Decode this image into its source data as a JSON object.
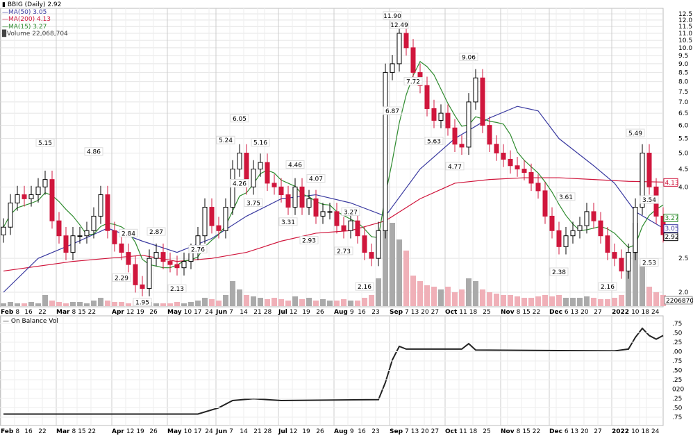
{
  "legend": {
    "title": "BBIG (Daily) 2.92",
    "ma50": "MA(50) 3.05",
    "ma200": "MA(200) 4.13",
    "ma15": "MA(15) 3.27",
    "volume": "Volume 22,068,704"
  },
  "obv_legend": "On Balance Vol",
  "colors": {
    "up": "#000000",
    "down": "#d0163c",
    "ma50": "#3a3aa0",
    "ma200": "#d0163c",
    "ma15": "#2e8b2e",
    "volume_up": "#aaaaaa",
    "volume_down": "#f0b0b8",
    "obv": "#222222"
  },
  "chart_data": {
    "type": "candlestick",
    "scale": "log",
    "ylim": [
      2.0,
      12.5
    ],
    "price_ticks": [
      "12.5",
      "12.0",
      "11.5",
      "11.0",
      "10.5",
      "10.0",
      "9.5",
      "9.0",
      "8.5",
      "8.0",
      "7.5",
      "7.0",
      "6.5",
      "6.0",
      "5.5",
      "5.0",
      "4.5",
      "4.0",
      "2.5",
      "2.0"
    ],
    "date_ticks": [
      [
        "Feb",
        0,
        true
      ],
      [
        "8",
        2,
        false
      ],
      [
        "16",
        4,
        false
      ],
      [
        "22",
        6,
        false
      ],
      [
        "Mar",
        8,
        true
      ],
      [
        "8",
        9,
        false
      ],
      [
        "15",
        11,
        false
      ],
      [
        "22",
        13,
        false
      ],
      [
        "Apr",
        16,
        true
      ],
      [
        "12",
        18,
        false
      ],
      [
        "19",
        20,
        false
      ],
      [
        "26",
        22,
        false
      ],
      [
        "May",
        24,
        true
      ],
      [
        "10",
        26,
        false
      ],
      [
        "17",
        28,
        false
      ],
      [
        "24",
        30,
        false
      ],
      [
        "Jun",
        31,
        true
      ],
      [
        "7",
        33,
        false
      ],
      [
        "14",
        35,
        false
      ],
      [
        "21",
        37,
        false
      ],
      [
        "28",
        38,
        false
      ],
      [
        "Jul",
        40,
        true
      ],
      [
        "12",
        42,
        false
      ],
      [
        "19",
        44,
        false
      ],
      [
        "26",
        46,
        false
      ],
      [
        "Aug",
        48,
        true
      ],
      [
        "9",
        50,
        false
      ],
      [
        "16",
        52,
        false
      ],
      [
        "23",
        54,
        false
      ],
      [
        "Sep",
        56,
        true
      ],
      [
        "7",
        57,
        false
      ],
      [
        "13",
        59,
        false
      ],
      [
        "20",
        61,
        false
      ],
      [
        "27",
        62,
        false
      ],
      [
        "Oct",
        64,
        true
      ],
      [
        "11",
        66,
        false
      ],
      [
        "18",
        68,
        false
      ],
      [
        "25",
        70,
        false
      ],
      [
        "Nov",
        72,
        true
      ],
      [
        "8",
        73,
        false
      ],
      [
        "15",
        75,
        false
      ],
      [
        "22",
        77,
        false
      ],
      [
        "Dec",
        79,
        true
      ],
      [
        "6",
        80,
        false
      ],
      [
        "13",
        82,
        false
      ],
      [
        "20",
        84,
        false
      ],
      [
        "27",
        86,
        false
      ],
      [
        "2022",
        88,
        true
      ],
      [
        "10",
        90,
        false
      ],
      [
        "18",
        92,
        false
      ],
      [
        "24",
        93,
        false
      ]
    ],
    "closes": [
      3.07,
      3.6,
      3.8,
      3.7,
      3.8,
      4.0,
      4.2,
      3.2,
      2.9,
      2.6,
      2.9,
      2.9,
      3.0,
      3.3,
      3.8,
      3.0,
      2.75,
      2.6,
      2.4,
      2.1,
      2.05,
      2.5,
      2.6,
      2.45,
      2.4,
      2.35,
      2.45,
      2.6,
      2.9,
      3.5,
      3.1,
      3.0,
      3.5,
      4.5,
      5.0,
      4.0,
      4.5,
      4.7,
      4.1,
      4.0,
      3.8,
      3.5,
      4.0,
      3.5,
      3.7,
      3.3,
      3.4,
      3.4,
      3.1,
      3.0,
      3.2,
      2.9,
      2.6,
      2.5,
      3.0,
      8.5,
      9.0,
      11.0,
      10.0,
      8.5,
      7.8,
      6.7,
      6.2,
      6.5,
      5.9,
      5.3,
      5.2,
      7.0,
      8.2,
      6.0,
      5.3,
      5.0,
      4.8,
      4.6,
      4.5,
      4.4,
      4.1,
      3.9,
      3.3,
      3.0,
      2.7,
      2.9,
      3.0,
      3.1,
      3.4,
      3.2,
      2.9,
      2.6,
      2.5,
      2.3,
      2.6,
      3.5,
      5.0,
      4.0,
      3.3,
      2.92
    ],
    "volume": [
      2,
      3,
      2,
      2,
      3,
      2,
      8,
      4,
      3,
      2,
      3,
      3,
      2,
      4,
      6,
      4,
      3,
      3,
      2,
      4,
      5,
      3,
      2,
      2,
      2,
      3,
      2,
      3,
      4,
      6,
      5,
      4,
      8,
      18,
      12,
      8,
      7,
      6,
      5,
      6,
      5,
      4,
      7,
      5,
      6,
      4,
      5,
      4,
      4,
      5,
      4,
      4,
      6,
      8,
      20,
      55,
      60,
      48,
      40,
      22,
      18,
      15,
      14,
      12,
      14,
      10,
      12,
      20,
      18,
      12,
      10,
      9,
      8,
      8,
      7,
      6,
      6,
      7,
      8,
      7,
      8,
      6,
      6,
      6,
      7,
      6,
      5,
      5,
      6,
      8,
      25,
      60,
      30,
      14,
      10,
      8
    ],
    "ma50": [
      [
        0,
        2.0
      ],
      [
        5,
        2.5
      ],
      [
        10,
        2.75
      ],
      [
        15,
        3.05
      ],
      [
        20,
        2.8
      ],
      [
        25,
        2.6
      ],
      [
        30,
        2.85
      ],
      [
        35,
        3.3
      ],
      [
        40,
        3.7
      ],
      [
        45,
        3.8
      ],
      [
        50,
        3.6
      ],
      [
        55,
        3.3
      ],
      [
        60,
        4.5
      ],
      [
        65,
        5.5
      ],
      [
        70,
        6.3
      ],
      [
        74,
        6.8
      ],
      [
        77,
        6.6
      ],
      [
        80,
        5.5
      ],
      [
        85,
        4.6
      ],
      [
        88,
        4.1
      ],
      [
        91,
        3.4
      ],
      [
        95,
        3.05
      ]
    ],
    "ma200": [
      [
        0,
        2.3
      ],
      [
        10,
        2.45
      ],
      [
        15,
        2.5
      ],
      [
        20,
        2.55
      ],
      [
        25,
        2.45
      ],
      [
        30,
        2.5
      ],
      [
        35,
        2.6
      ],
      [
        40,
        2.8
      ],
      [
        45,
        2.95
      ],
      [
        50,
        3.0
      ],
      [
        55,
        3.2
      ],
      [
        60,
        3.7
      ],
      [
        65,
        4.1
      ],
      [
        70,
        4.2
      ],
      [
        75,
        4.25
      ],
      [
        80,
        4.25
      ],
      [
        85,
        4.2
      ],
      [
        90,
        4.15
      ],
      [
        95,
        4.13
      ]
    ],
    "ma15_window": 6,
    "annotations": [
      [
        "5.15",
        6,
        5.15,
        "top"
      ],
      [
        "4.86",
        13,
        4.86,
        "top"
      ],
      [
        "2.84",
        18,
        2.84,
        "top"
      ],
      [
        "2.87",
        22,
        2.87,
        "top"
      ],
      [
        "2.29",
        17,
        2.29,
        "bottom"
      ],
      [
        "1.95",
        20,
        1.95,
        "bottom"
      ],
      [
        "2.13",
        25,
        2.13,
        "bottom"
      ],
      [
        "2.76",
        28,
        2.76,
        "bottom"
      ],
      [
        "5.24",
        32,
        5.24,
        "top"
      ],
      [
        "6.05",
        34,
        6.05,
        "top"
      ],
      [
        "4.26",
        34,
        4.26,
        "bottom"
      ],
      [
        "5.16",
        37,
        5.16,
        "top"
      ],
      [
        "3.75",
        36,
        3.75,
        "bottom"
      ],
      [
        "4.46",
        42,
        4.46,
        "top"
      ],
      [
        "3.31",
        41,
        3.31,
        "bottom"
      ],
      [
        "4.07",
        45,
        4.07,
        "top"
      ],
      [
        "2.93",
        44,
        2.93,
        "bottom"
      ],
      [
        "3.27",
        50,
        3.27,
        "top"
      ],
      [
        "2.73",
        49,
        2.73,
        "bottom"
      ],
      [
        "2.16",
        52,
        2.16,
        "bottom"
      ],
      [
        "11.90",
        56,
        11.9,
        "top"
      ],
      [
        "12.49",
        57,
        12.49,
        "top"
      ],
      [
        "6.87",
        56,
        6.87,
        "bottom"
      ],
      [
        "7.72",
        59,
        7.72,
        "top"
      ],
      [
        "5.63",
        62,
        5.63,
        "bottom"
      ],
      [
        "9.06",
        67,
        9.06,
        "top"
      ],
      [
        "4.77",
        65,
        4.77,
        "bottom"
      ],
      [
        "3.61",
        81,
        3.61,
        "top"
      ],
      [
        "2.38",
        80,
        2.38,
        "bottom"
      ],
      [
        "2.16",
        87,
        2.16,
        "bottom"
      ],
      [
        "5.49",
        91,
        5.49,
        "top"
      ],
      [
        "3.54",
        93,
        3.54,
        "top"
      ],
      [
        "2.53",
        93,
        2.53,
        "bottom"
      ]
    ],
    "tags": [
      [
        "4.13",
        "#d0163c",
        4.13
      ],
      [
        "3.27",
        "#2e8b2e",
        3.27
      ],
      [
        "3.05",
        "#3a3aa0",
        3.05
      ],
      [
        "2.92",
        "#000000",
        2.92
      ]
    ],
    "volume_tag": "22068704",
    "obv": [
      [
        0,
        5
      ],
      [
        28,
        5
      ],
      [
        31,
        12
      ],
      [
        33,
        20
      ],
      [
        36,
        22
      ],
      [
        40,
        20
      ],
      [
        54,
        21
      ],
      [
        55,
        40
      ],
      [
        56,
        65
      ],
      [
        57,
        80
      ],
      [
        58,
        77
      ],
      [
        66,
        77
      ],
      [
        67,
        83
      ],
      [
        68,
        76
      ],
      [
        88,
        75
      ],
      [
        90,
        77
      ],
      [
        91,
        90
      ],
      [
        92,
        100
      ],
      [
        93,
        92
      ],
      [
        94,
        88
      ],
      [
        95,
        92
      ]
    ],
    "obv_ticks": [
      ".75",
      ".50",
      ".25",
      ".00",
      ".75",
      ".50",
      ".25",
      "020",
      ".25",
      ".50",
      ".75"
    ]
  }
}
